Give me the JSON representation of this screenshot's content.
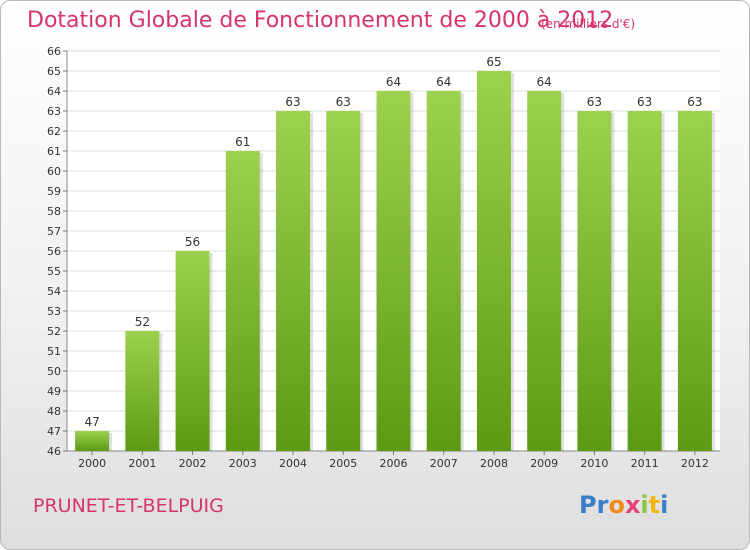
{
  "title": "Dotation Globale de Fonctionnement de 2000 à 2012",
  "subtitle": "(en milliers d'€)",
  "place_name": "PRUNET-ET-BELPUIG",
  "logo": {
    "text": "Proxiti",
    "letters": [
      "P",
      "r",
      "o",
      "x",
      "i",
      "t",
      "i"
    ]
  },
  "colors": {
    "title": "#d7336f",
    "bar_top": "#9dd150",
    "bar_bottom": "#5c9a14"
  },
  "chart_data": {
    "type": "bar",
    "categories": [
      "2000",
      "2001",
      "2002",
      "2003",
      "2004",
      "2005",
      "2006",
      "2007",
      "2008",
      "2009",
      "2010",
      "2011",
      "2012"
    ],
    "values": [
      47,
      52,
      56,
      61,
      63,
      63,
      64,
      64,
      65,
      64,
      63,
      63,
      63
    ],
    "ylim": [
      46,
      66
    ],
    "yticks": [
      46,
      47,
      48,
      49,
      50,
      51,
      52,
      53,
      54,
      55,
      56,
      57,
      58,
      59,
      60,
      61,
      62,
      63,
      64,
      65,
      66
    ],
    "grid": true,
    "data_labels": true
  }
}
